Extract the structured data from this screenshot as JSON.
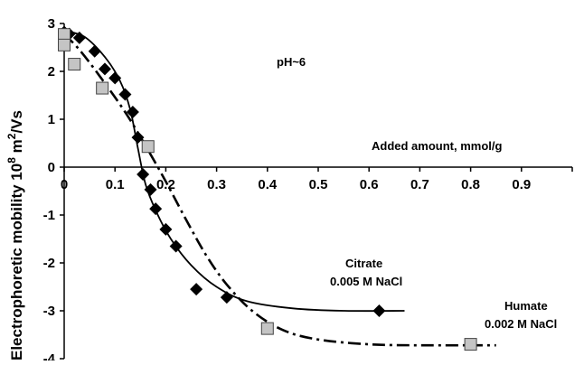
{
  "chart_data": {
    "type": "scatter",
    "ylabel_main": "Electrophoretic mobility 10",
    "ylabel_exp": "8",
    "ylabel_unit": " m",
    "ylabel_unit_exp": "2",
    "ylabel_tail": "/Vs",
    "xlabel": "Added amount, mmol/g",
    "xlim": [
      0,
      1.0
    ],
    "ylim": [
      -4,
      3
    ],
    "x_ticks": [
      0,
      0.1,
      0.2,
      0.3,
      0.4,
      0.5,
      0.6,
      0.7,
      0.8,
      0.9
    ],
    "x_tick_labels": [
      "0",
      "0.1",
      "0.2",
      "0.3",
      "0.4",
      "0.5",
      "0.6",
      "0.7",
      "0.8",
      "0.9"
    ],
    "y_ticks": [
      3,
      2,
      1,
      0,
      -1,
      -2,
      -3,
      -4
    ],
    "y_tick_labels": [
      "3",
      "2",
      "1",
      "0",
      "-1",
      "-2",
      "-3",
      "-4"
    ],
    "annotations": {
      "ph": "pH~6",
      "citrate_name": "Citrate",
      "citrate_salt": "0.005 M NaCl",
      "humate_name": "Humate",
      "humate_salt": "0.002 M NaCl"
    },
    "series": [
      {
        "marker": "diamond",
        "color": "#000000",
        "points": [
          {
            "x": 0.0,
            "y": 2.82
          },
          {
            "x": 0.01,
            "y": 2.78
          },
          {
            "x": 0.03,
            "y": 2.7
          },
          {
            "x": 0.06,
            "y": 2.42
          },
          {
            "x": 0.08,
            "y": 2.05
          },
          {
            "x": 0.1,
            "y": 1.86
          },
          {
            "x": 0.12,
            "y": 1.52
          },
          {
            "x": 0.135,
            "y": 1.15
          },
          {
            "x": 0.145,
            "y": 0.62
          },
          {
            "x": 0.155,
            "y": -0.15
          },
          {
            "x": 0.17,
            "y": -0.47
          },
          {
            "x": 0.18,
            "y": -0.87
          },
          {
            "x": 0.2,
            "y": -1.3
          },
          {
            "x": 0.22,
            "y": -1.65
          },
          {
            "x": 0.26,
            "y": -2.55
          },
          {
            "x": 0.32,
            "y": -2.72
          },
          {
            "x": 0.62,
            "y": -3.0
          }
        ],
        "fit_style": "solid",
        "fit": [
          {
            "x": 0.0,
            "y": 2.85
          },
          {
            "x": 0.04,
            "y": 2.72
          },
          {
            "x": 0.08,
            "y": 2.3
          },
          {
            "x": 0.11,
            "y": 1.8
          },
          {
            "x": 0.13,
            "y": 1.2
          },
          {
            "x": 0.145,
            "y": 0.4
          },
          {
            "x": 0.16,
            "y": -0.35
          },
          {
            "x": 0.18,
            "y": -0.9
          },
          {
            "x": 0.21,
            "y": -1.5
          },
          {
            "x": 0.25,
            "y": -2.05
          },
          {
            "x": 0.3,
            "y": -2.5
          },
          {
            "x": 0.36,
            "y": -2.8
          },
          {
            "x": 0.45,
            "y": -2.95
          },
          {
            "x": 0.55,
            "y": -3.0
          },
          {
            "x": 0.67,
            "y": -3.0
          }
        ]
      },
      {
        "marker": "square",
        "color": "#c4c4c4",
        "points": [
          {
            "x": 0.0,
            "y": 2.77
          },
          {
            "x": 0.0,
            "y": 2.55
          },
          {
            "x": 0.02,
            "y": 2.15
          },
          {
            "x": 0.075,
            "y": 1.65
          },
          {
            "x": 0.165,
            "y": 0.43
          },
          {
            "x": 0.4,
            "y": -3.37
          },
          {
            "x": 0.8,
            "y": -3.7
          }
        ],
        "fit_style": "dash-dot",
        "fit": [
          {
            "x": 0.0,
            "y": 2.78
          },
          {
            "x": 0.03,
            "y": 2.45
          },
          {
            "x": 0.07,
            "y": 1.9
          },
          {
            "x": 0.12,
            "y": 1.15
          },
          {
            "x": 0.16,
            "y": 0.45
          },
          {
            "x": 0.2,
            "y": -0.3
          },
          {
            "x": 0.24,
            "y": -1.1
          },
          {
            "x": 0.28,
            "y": -1.85
          },
          {
            "x": 0.32,
            "y": -2.45
          },
          {
            "x": 0.37,
            "y": -3.0
          },
          {
            "x": 0.43,
            "y": -3.4
          },
          {
            "x": 0.5,
            "y": -3.6
          },
          {
            "x": 0.6,
            "y": -3.7
          },
          {
            "x": 0.7,
            "y": -3.72
          },
          {
            "x": 0.85,
            "y": -3.72
          }
        ]
      }
    ]
  }
}
